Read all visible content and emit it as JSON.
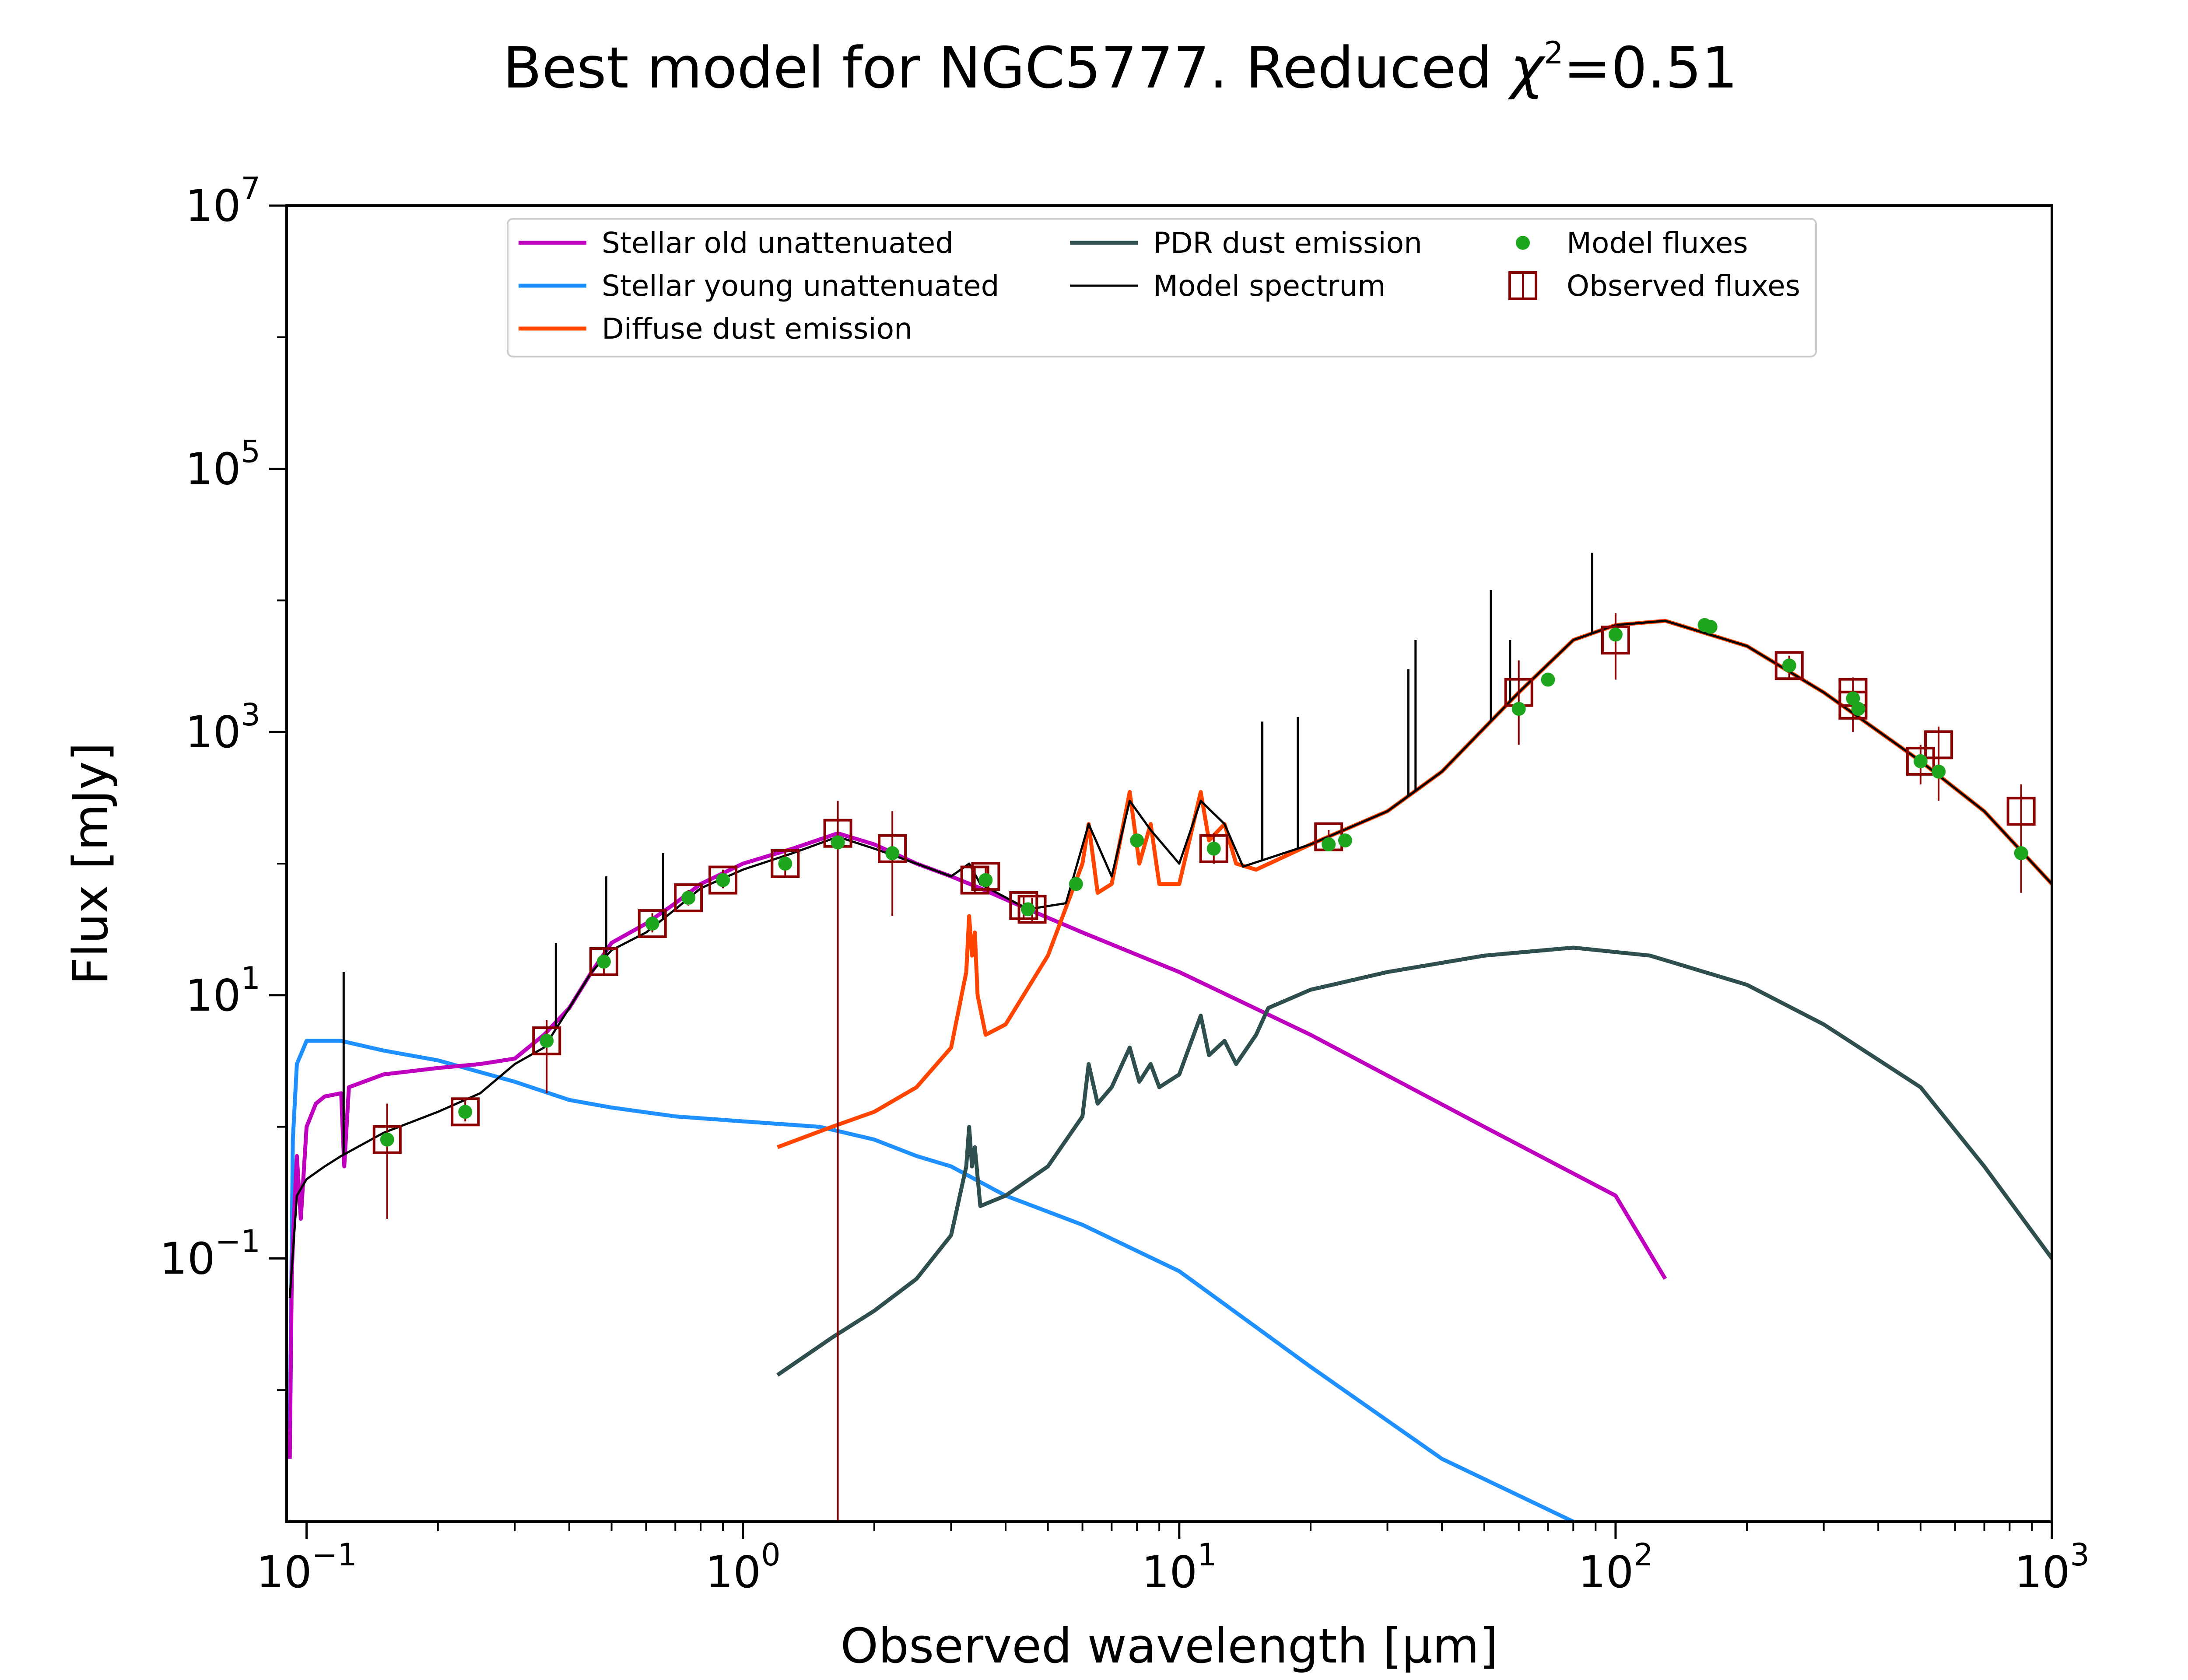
{
  "chart_data": {
    "type": "line",
    "title": "Best model for NGC5777. Reduced χ²=0.51",
    "title_parts": {
      "prefix": "Best model for NGC5777. Reduced ",
      "chi": "χ",
      "exp": "2",
      "suffix": "=0.51"
    },
    "xlabel": "Observed wavelength [μm]",
    "ylabel": "Flux [mJy]",
    "xscale": "log",
    "yscale": "log",
    "xlim": [
      0.09,
      1000
    ],
    "ylim": [
      0.001,
      10000000
    ],
    "grid": false,
    "legend_position": "top-center",
    "x_ticks": [
      {
        "base": "10",
        "exp": "−1",
        "value": 0.1
      },
      {
        "base": "10",
        "exp": "0",
        "value": 1
      },
      {
        "base": "10",
        "exp": "1",
        "value": 10
      },
      {
        "base": "10",
        "exp": "2",
        "value": 100
      },
      {
        "base": "10",
        "exp": "3",
        "value": 1000
      }
    ],
    "y_ticks": [
      {
        "base": "10",
        "exp": "−1",
        "value": 0.1
      },
      {
        "base": "10",
        "exp": "1",
        "value": 10
      },
      {
        "base": "10",
        "exp": "3",
        "value": 1000
      },
      {
        "base": "10",
        "exp": "5",
        "value": 100000
      },
      {
        "base": "10",
        "exp": "7",
        "value": 10000000
      }
    ],
    "series": [
      {
        "name": "Stellar old unattenuated",
        "color": "#bf00bf",
        "points": [
          [
            0.0915,
            0.003
          ],
          [
            0.0925,
            0.08
          ],
          [
            0.0935,
            0.2
          ],
          [
            0.095,
            0.6
          ],
          [
            0.097,
            0.2
          ],
          [
            0.1,
            1.0
          ],
          [
            0.105,
            1.5
          ],
          [
            0.11,
            1.7
          ],
          [
            0.12,
            1.8
          ],
          [
            0.122,
            0.5
          ],
          [
            0.125,
            2.0
          ],
          [
            0.15,
            2.5
          ],
          [
            0.2,
            2.8
          ],
          [
            0.25,
            3.0
          ],
          [
            0.3,
            3.3
          ],
          [
            0.35,
            5
          ],
          [
            0.4,
            8
          ],
          [
            0.45,
            15
          ],
          [
            0.5,
            25
          ],
          [
            0.6,
            35
          ],
          [
            0.7,
            50
          ],
          [
            0.8,
            70
          ],
          [
            1.0,
            100
          ],
          [
            1.3,
            130
          ],
          [
            1.65,
            170
          ],
          [
            2.0,
            140
          ],
          [
            2.5,
            100
          ],
          [
            3.0,
            80
          ],
          [
            3.5,
            65
          ],
          [
            4.5,
            45
          ],
          [
            6,
            30
          ],
          [
            10,
            15
          ],
          [
            20,
            5
          ],
          [
            50,
            1
          ],
          [
            100,
            0.3
          ],
          [
            130,
            0.07
          ]
        ]
      },
      {
        "name": "Stellar young unattenuated",
        "color": "#1e90ff",
        "points": [
          [
            0.0915,
            0.005
          ],
          [
            0.093,
            0.8
          ],
          [
            0.095,
            3.0
          ],
          [
            0.1,
            4.5
          ],
          [
            0.12,
            4.5
          ],
          [
            0.15,
            3.8
          ],
          [
            0.2,
            3.2
          ],
          [
            0.3,
            2.2
          ],
          [
            0.4,
            1.6
          ],
          [
            0.5,
            1.4
          ],
          [
            0.7,
            1.2
          ],
          [
            1.0,
            1.1
          ],
          [
            1.5,
            1.0
          ],
          [
            2.0,
            0.8
          ],
          [
            2.5,
            0.6
          ],
          [
            3.0,
            0.5
          ],
          [
            4.0,
            0.3
          ],
          [
            6,
            0.18
          ],
          [
            10,
            0.08
          ],
          [
            20,
            0.015
          ],
          [
            40,
            0.003
          ],
          [
            80,
            0.001
          ]
        ]
      },
      {
        "name": "Diffuse dust emission",
        "color": "#ff4500",
        "points": [
          [
            1.2,
            0.7
          ],
          [
            1.6,
            1.0
          ],
          [
            2.0,
            1.3
          ],
          [
            2.5,
            2.0
          ],
          [
            3.0,
            4.0
          ],
          [
            3.25,
            15
          ],
          [
            3.3,
            40
          ],
          [
            3.35,
            20
          ],
          [
            3.4,
            30
          ],
          [
            3.45,
            10
          ],
          [
            3.6,
            5
          ],
          [
            4.0,
            6
          ],
          [
            5.0,
            20
          ],
          [
            6.0,
            100
          ],
          [
            6.2,
            200
          ],
          [
            6.5,
            60
          ],
          [
            7.0,
            70
          ],
          [
            7.7,
            350
          ],
          [
            8.1,
            100
          ],
          [
            8.6,
            200
          ],
          [
            9.0,
            70
          ],
          [
            10.0,
            70
          ],
          [
            11.2,
            350
          ],
          [
            11.7,
            150
          ],
          [
            12.7,
            200
          ],
          [
            13.5,
            100
          ],
          [
            15,
            90
          ],
          [
            20,
            140
          ],
          [
            30,
            250
          ],
          [
            40,
            500
          ],
          [
            60,
            2000
          ],
          [
            80,
            5000
          ],
          [
            100,
            6500
          ],
          [
            130,
            7000
          ],
          [
            200,
            4500
          ],
          [
            300,
            2000
          ],
          [
            500,
            600
          ],
          [
            700,
            250
          ],
          [
            1000,
            70
          ]
        ]
      },
      {
        "name": "PDR dust emission",
        "color": "#2f4f4f",
        "points": [
          [
            1.2,
            0.013
          ],
          [
            1.6,
            0.025
          ],
          [
            2.0,
            0.04
          ],
          [
            2.5,
            0.07
          ],
          [
            3.0,
            0.15
          ],
          [
            3.25,
            0.5
          ],
          [
            3.3,
            1.0
          ],
          [
            3.35,
            0.5
          ],
          [
            3.4,
            0.7
          ],
          [
            3.5,
            0.25
          ],
          [
            4.0,
            0.3
          ],
          [
            5.0,
            0.5
          ],
          [
            6.0,
            1.2
          ],
          [
            6.2,
            3
          ],
          [
            6.5,
            1.5
          ],
          [
            7.0,
            2
          ],
          [
            7.7,
            4
          ],
          [
            8.1,
            2.2
          ],
          [
            8.6,
            3
          ],
          [
            9.0,
            2
          ],
          [
            10.0,
            2.5
          ],
          [
            11.2,
            7
          ],
          [
            11.7,
            3.5
          ],
          [
            12.7,
            4.5
          ],
          [
            13.5,
            3
          ],
          [
            15,
            5
          ],
          [
            16,
            8
          ],
          [
            20,
            11
          ],
          [
            30,
            15
          ],
          [
            50,
            20
          ],
          [
            80,
            23
          ],
          [
            120,
            20
          ],
          [
            200,
            12
          ],
          [
            300,
            6
          ],
          [
            500,
            2
          ],
          [
            700,
            0.5
          ],
          [
            1000,
            0.1
          ]
        ]
      },
      {
        "name": "Model spectrum",
        "color": "#000000",
        "points": [
          [
            0.0915,
            0.05
          ],
          [
            0.095,
            0.3
          ],
          [
            0.1,
            0.4
          ],
          [
            0.11,
            0.5
          ],
          [
            0.12,
            0.6
          ],
          [
            0.15,
            0.9
          ],
          [
            0.2,
            1.3
          ],
          [
            0.25,
            1.8
          ],
          [
            0.3,
            3.0
          ],
          [
            0.35,
            4
          ],
          [
            0.4,
            8
          ],
          [
            0.45,
            15
          ],
          [
            0.5,
            22
          ],
          [
            0.6,
            30
          ],
          [
            0.7,
            45
          ],
          [
            0.8,
            65
          ],
          [
            1.0,
            90
          ],
          [
            1.3,
            120
          ],
          [
            1.65,
            160
          ],
          [
            2.0,
            130
          ],
          [
            2.5,
            100
          ],
          [
            3.0,
            80
          ],
          [
            3.3,
            100
          ],
          [
            3.5,
            70
          ],
          [
            4.5,
            45
          ],
          [
            5.5,
            50
          ],
          [
            6.2,
            200
          ],
          [
            7.0,
            80
          ],
          [
            7.7,
            300
          ],
          [
            8.6,
            180
          ],
          [
            10,
            100
          ],
          [
            11.2,
            300
          ],
          [
            12.7,
            200
          ],
          [
            14,
            95
          ],
          [
            20,
            140
          ],
          [
            30,
            250
          ],
          [
            40,
            500
          ],
          [
            60,
            2000
          ],
          [
            80,
            5000
          ],
          [
            100,
            6500
          ],
          [
            130,
            7000
          ],
          [
            200,
            4500
          ],
          [
            300,
            2000
          ],
          [
            500,
            600
          ],
          [
            700,
            250
          ],
          [
            1000,
            70
          ]
        ]
      }
    ],
    "emission_lines": [
      {
        "x": 0.1216,
        "y_top": 15
      },
      {
        "x": 0.3727,
        "y_top": 25
      },
      {
        "x": 0.4861,
        "y_top": 80
      },
      {
        "x": 0.6563,
        "y_top": 120
      },
      {
        "x": 15.5,
        "y_top": 1200
      },
      {
        "x": 18.7,
        "y_top": 1300
      },
      {
        "x": 33.5,
        "y_top": 3000
      },
      {
        "x": 34.8,
        "y_top": 5000
      },
      {
        "x": 51.8,
        "y_top": 12000
      },
      {
        "x": 57.3,
        "y_top": 5000
      },
      {
        "x": 88.4,
        "y_top": 23000
      }
    ],
    "model_fluxes": {
      "name": "Model fluxes",
      "color": "#1fa61f",
      "points": [
        [
          0.153,
          0.8
        ],
        [
          0.231,
          1.3
        ],
        [
          0.355,
          4.5
        ],
        [
          0.48,
          18
        ],
        [
          0.62,
          35
        ],
        [
          0.75,
          55
        ],
        [
          0.9,
          75
        ],
        [
          1.25,
          100
        ],
        [
          1.65,
          145
        ],
        [
          2.2,
          120
        ],
        [
          3.6,
          75
        ],
        [
          4.5,
          45
        ],
        [
          5.8,
          70
        ],
        [
          8.0,
          150
        ],
        [
          12,
          130
        ],
        [
          22,
          140
        ],
        [
          24,
          150
        ],
        [
          60,
          1500
        ],
        [
          70,
          2500
        ],
        [
          100,
          5500
        ],
        [
          160,
          6500
        ],
        [
          165,
          6300
        ],
        [
          250,
          3200
        ],
        [
          350,
          1800
        ],
        [
          360,
          1500
        ],
        [
          500,
          600
        ],
        [
          550,
          500
        ],
        [
          850,
          120
        ]
      ]
    },
    "observed_fluxes": {
      "name": "Observed fluxes",
      "color": "#8b0000",
      "points": [
        {
          "x": 0.153,
          "y": 0.8,
          "lo": 0.2,
          "hi": 1.5
        },
        {
          "x": 0.231,
          "y": 1.3,
          "lo": 1.1,
          "hi": 1.6
        },
        {
          "x": 0.355,
          "y": 4.5,
          "lo": 1.8,
          "hi": 6.5
        },
        {
          "x": 0.48,
          "y": 18,
          "lo": 14,
          "hi": 23
        },
        {
          "x": 0.62,
          "y": 35,
          "lo": 30,
          "hi": 42
        },
        {
          "x": 0.75,
          "y": 55,
          "lo": 48,
          "hi": 63
        },
        {
          "x": 0.9,
          "y": 75,
          "lo": 65,
          "hi": 90
        },
        {
          "x": 1.25,
          "y": 100,
          "lo": 80,
          "hi": 125
        },
        {
          "x": 1.65,
          "y": 170,
          "lo": 0.001,
          "hi": 300
        },
        {
          "x": 2.2,
          "y": 130,
          "lo": 40,
          "hi": 250
        },
        {
          "x": 3.4,
          "y": 75,
          "lo": 60,
          "hi": 95
        },
        {
          "x": 3.6,
          "y": 80,
          "lo": 68,
          "hi": 95
        },
        {
          "x": 4.4,
          "y": 48,
          "lo": 38,
          "hi": 58
        },
        {
          "x": 4.6,
          "y": 45,
          "lo": 36,
          "hi": 55
        },
        {
          "x": 12,
          "y": 130,
          "lo": 100,
          "hi": 170
        },
        {
          "x": 22,
          "y": 160,
          "lo": 140,
          "hi": 180
        },
        {
          "x": 60,
          "y": 2000,
          "lo": 800,
          "hi": 3500
        },
        {
          "x": 100,
          "y": 5000,
          "lo": 2500,
          "hi": 8000
        },
        {
          "x": 250,
          "y": 3200,
          "lo": 2600,
          "hi": 3800
        },
        {
          "x": 350,
          "y": 2000,
          "lo": 1500,
          "hi": 2600
        },
        {
          "x": 350,
          "y": 1600,
          "lo": 1000,
          "hi": 2200
        },
        {
          "x": 500,
          "y": 600,
          "lo": 400,
          "hi": 800
        },
        {
          "x": 550,
          "y": 800,
          "lo": 300,
          "hi": 1100
        },
        {
          "x": 850,
          "y": 250,
          "lo": 60,
          "hi": 400
        }
      ]
    },
    "legend": [
      {
        "label": "Stellar old unattenuated",
        "kind": "line",
        "color": "#bf00bf"
      },
      {
        "label": "Stellar young unattenuated",
        "kind": "line",
        "color": "#1e90ff"
      },
      {
        "label": "Diffuse dust emission",
        "kind": "line",
        "color": "#ff4500"
      },
      {
        "label": "PDR dust emission",
        "kind": "line",
        "color": "#2f4f4f"
      },
      {
        "label": "Model spectrum",
        "kind": "thinline",
        "color": "#000000"
      },
      {
        "label": "Model fluxes",
        "kind": "dot",
        "color": "#1fa61f"
      },
      {
        "label": "Observed fluxes",
        "kind": "square",
        "color": "#8b0000"
      }
    ]
  }
}
